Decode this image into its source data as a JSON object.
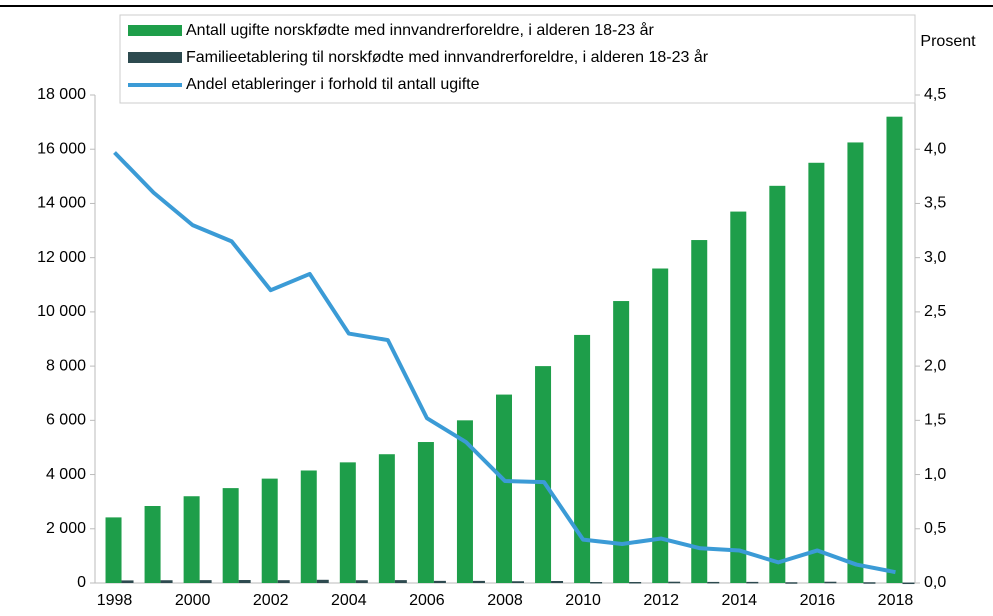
{
  "chart_data": {
    "type": "bar",
    "categories": [
      "1998",
      null,
      "2000",
      null,
      "2002",
      null,
      "2004",
      null,
      "2006",
      null,
      "2008",
      null,
      "2010",
      null,
      "2012",
      null,
      "2014",
      null,
      "2016",
      null,
      "2018"
    ],
    "series": [
      {
        "name": "Antall ugifte norskfødte med innvandrerforeldre, i alderen 18-23 år",
        "color": "#1e9e4a",
        "type": "bar",
        "values": [
          2420,
          2840,
          3200,
          3500,
          3850,
          4150,
          4450,
          4750,
          5200,
          6000,
          6950,
          8000,
          9150,
          10400,
          11600,
          12650,
          13700,
          14650,
          15500,
          16250,
          17200
        ]
      },
      {
        "name": "Familieetablering til norskfødte med innvandrerforeldre, i alderen 18-23 år",
        "color": "#2d4a4f",
        "type": "bar",
        "values": [
          96,
          102,
          106,
          110,
          104,
          118,
          102,
          106,
          79,
          78,
          65,
          74,
          37,
          37,
          48,
          40,
          41,
          28,
          47,
          28,
          17
        ]
      },
      {
        "name": "Andel etableringer i forhold til antall ugifte",
        "color": "#3b9bd6",
        "type": "line",
        "axis": "y2",
        "values": [
          3.97,
          3.6,
          3.3,
          3.15,
          2.7,
          2.85,
          2.3,
          2.24,
          1.52,
          1.3,
          0.94,
          0.93,
          0.4,
          0.36,
          0.41,
          0.32,
          0.3,
          0.19,
          0.3,
          0.17,
          0.1
        ]
      }
    ],
    "y2_label": "Prosent",
    "ylim": [
      0,
      18000
    ],
    "yticks": [
      0,
      {
        "value": 2000,
        "label": "2 000"
      },
      {
        "value": 4000,
        "label": "4 000"
      },
      {
        "value": 6000,
        "label": "6 000"
      },
      {
        "value": 8000,
        "label": "8 000"
      },
      {
        "value": 10000,
        "label": "10 000"
      },
      {
        "value": 12000,
        "label": "12 000"
      },
      {
        "value": 14000,
        "label": "14 000"
      },
      {
        "value": 16000,
        "label": "16 000"
      },
      {
        "value": 18000,
        "label": "18 000"
      }
    ],
    "y2lim": [
      0,
      4.5
    ],
    "y2ticks": [
      {
        "value": 0,
        "label": "0,0"
      },
      {
        "value": 0.5,
        "label": "0,5"
      },
      {
        "value": 1,
        "label": "1,0"
      },
      {
        "value": 1.5,
        "label": "1,5"
      },
      {
        "value": 2,
        "label": "2,0"
      },
      {
        "value": 2.5,
        "label": "2,5"
      },
      {
        "value": 3,
        "label": "3,0"
      },
      {
        "value": 3.5,
        "label": "3,5"
      },
      {
        "value": 4,
        "label": "4,0"
      },
      {
        "value": 4.5,
        "label": "4,5"
      }
    ],
    "legend": "top"
  }
}
